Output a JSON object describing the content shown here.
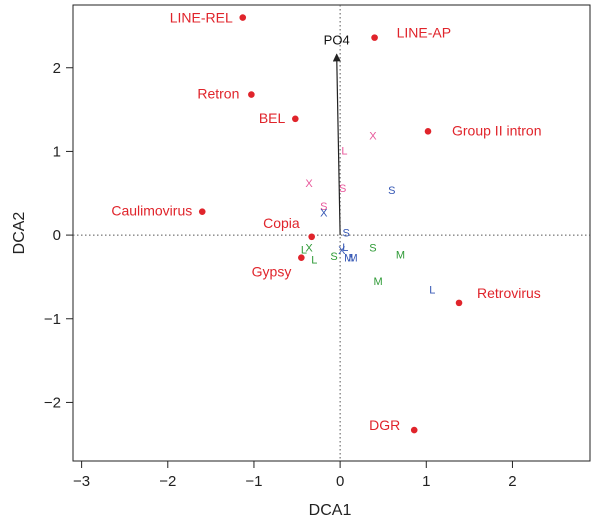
{
  "chart_data": {
    "type": "scatter",
    "xlabel": "DCA1",
    "ylabel": "DCA2",
    "xlim": [
      -3.1,
      2.9
    ],
    "ylim": [
      -2.7,
      2.75
    ],
    "x_ticks": [
      -3,
      -2,
      -1,
      0,
      1,
      2
    ],
    "y_ticks": [
      -2,
      -1,
      0,
      1,
      2
    ],
    "x_tick_labels": [
      "−3",
      "−2",
      "−1",
      "0",
      "1",
      "2"
    ],
    "y_tick_labels": [
      "−2",
      "−1",
      "0",
      "1",
      "2"
    ],
    "reference_lines": {
      "x": 0,
      "y": 0,
      "style": "dotted"
    },
    "colors": {
      "element_points": "#e0242b",
      "samples_magenta": "#e8579a",
      "samples_blue": "#3456b4",
      "samples_green": "#2e9a36",
      "vector": "#222222"
    },
    "element_points": [
      {
        "name": "LINE-REL",
        "x": -1.13,
        "y": 2.6
      },
      {
        "name": "LINE-AP",
        "x": 0.4,
        "y": 2.36
      },
      {
        "name": "Retron",
        "x": -1.03,
        "y": 1.68
      },
      {
        "name": "BEL",
        "x": -0.52,
        "y": 1.39
      },
      {
        "name": "Group II intron",
        "x": 1.02,
        "y": 1.24
      },
      {
        "name": "Caulimovirus",
        "x": -1.6,
        "y": 0.28
      },
      {
        "name": "Copia",
        "x": -0.33,
        "y": -0.02
      },
      {
        "name": "Gypsy",
        "x": -0.45,
        "y": -0.27
      },
      {
        "name": "Retrovirus",
        "x": 1.38,
        "y": -0.81
      },
      {
        "name": "DGR",
        "x": 0.86,
        "y": -2.33
      }
    ],
    "sample_groups": [
      {
        "color": "magenta",
        "points": [
          {
            "label": "X",
            "x": 0.38,
            "y": 1.19
          },
          {
            "label": "L",
            "x": 0.05,
            "y": 1.01
          },
          {
            "label": "X",
            "x": -0.36,
            "y": 0.62
          },
          {
            "label": "S",
            "x": 0.03,
            "y": 0.56
          },
          {
            "label": "S",
            "x": -0.19,
            "y": 0.35
          }
        ]
      },
      {
        "color": "blue",
        "points": [
          {
            "label": "S",
            "x": 0.6,
            "y": 0.54
          },
          {
            "label": "X",
            "x": -0.19,
            "y": 0.27
          },
          {
            "label": "S",
            "x": 0.07,
            "y": 0.03
          },
          {
            "label": "L",
            "x": 0.06,
            "y": -0.14
          },
          {
            "label": "X",
            "x": 0.02,
            "y": -0.18
          },
          {
            "label": "M",
            "x": 0.1,
            "y": -0.27
          },
          {
            "label": "M",
            "x": 0.15,
            "y": -0.27
          },
          {
            "label": "L",
            "x": 1.07,
            "y": -0.65
          }
        ]
      },
      {
        "color": "green",
        "points": [
          {
            "label": "L",
            "x": -0.42,
            "y": -0.17
          },
          {
            "label": "X",
            "x": -0.36,
            "y": -0.15
          },
          {
            "label": "L",
            "x": -0.3,
            "y": -0.29
          },
          {
            "label": "S",
            "x": -0.07,
            "y": -0.25
          },
          {
            "label": "S",
            "x": 0.38,
            "y": -0.15
          },
          {
            "label": "M",
            "x": 0.7,
            "y": -0.23
          },
          {
            "label": "M",
            "x": 0.44,
            "y": -0.55
          }
        ]
      }
    ],
    "vectors": [
      {
        "name": "PO4",
        "x": -0.04,
        "y": 2.16
      }
    ]
  }
}
